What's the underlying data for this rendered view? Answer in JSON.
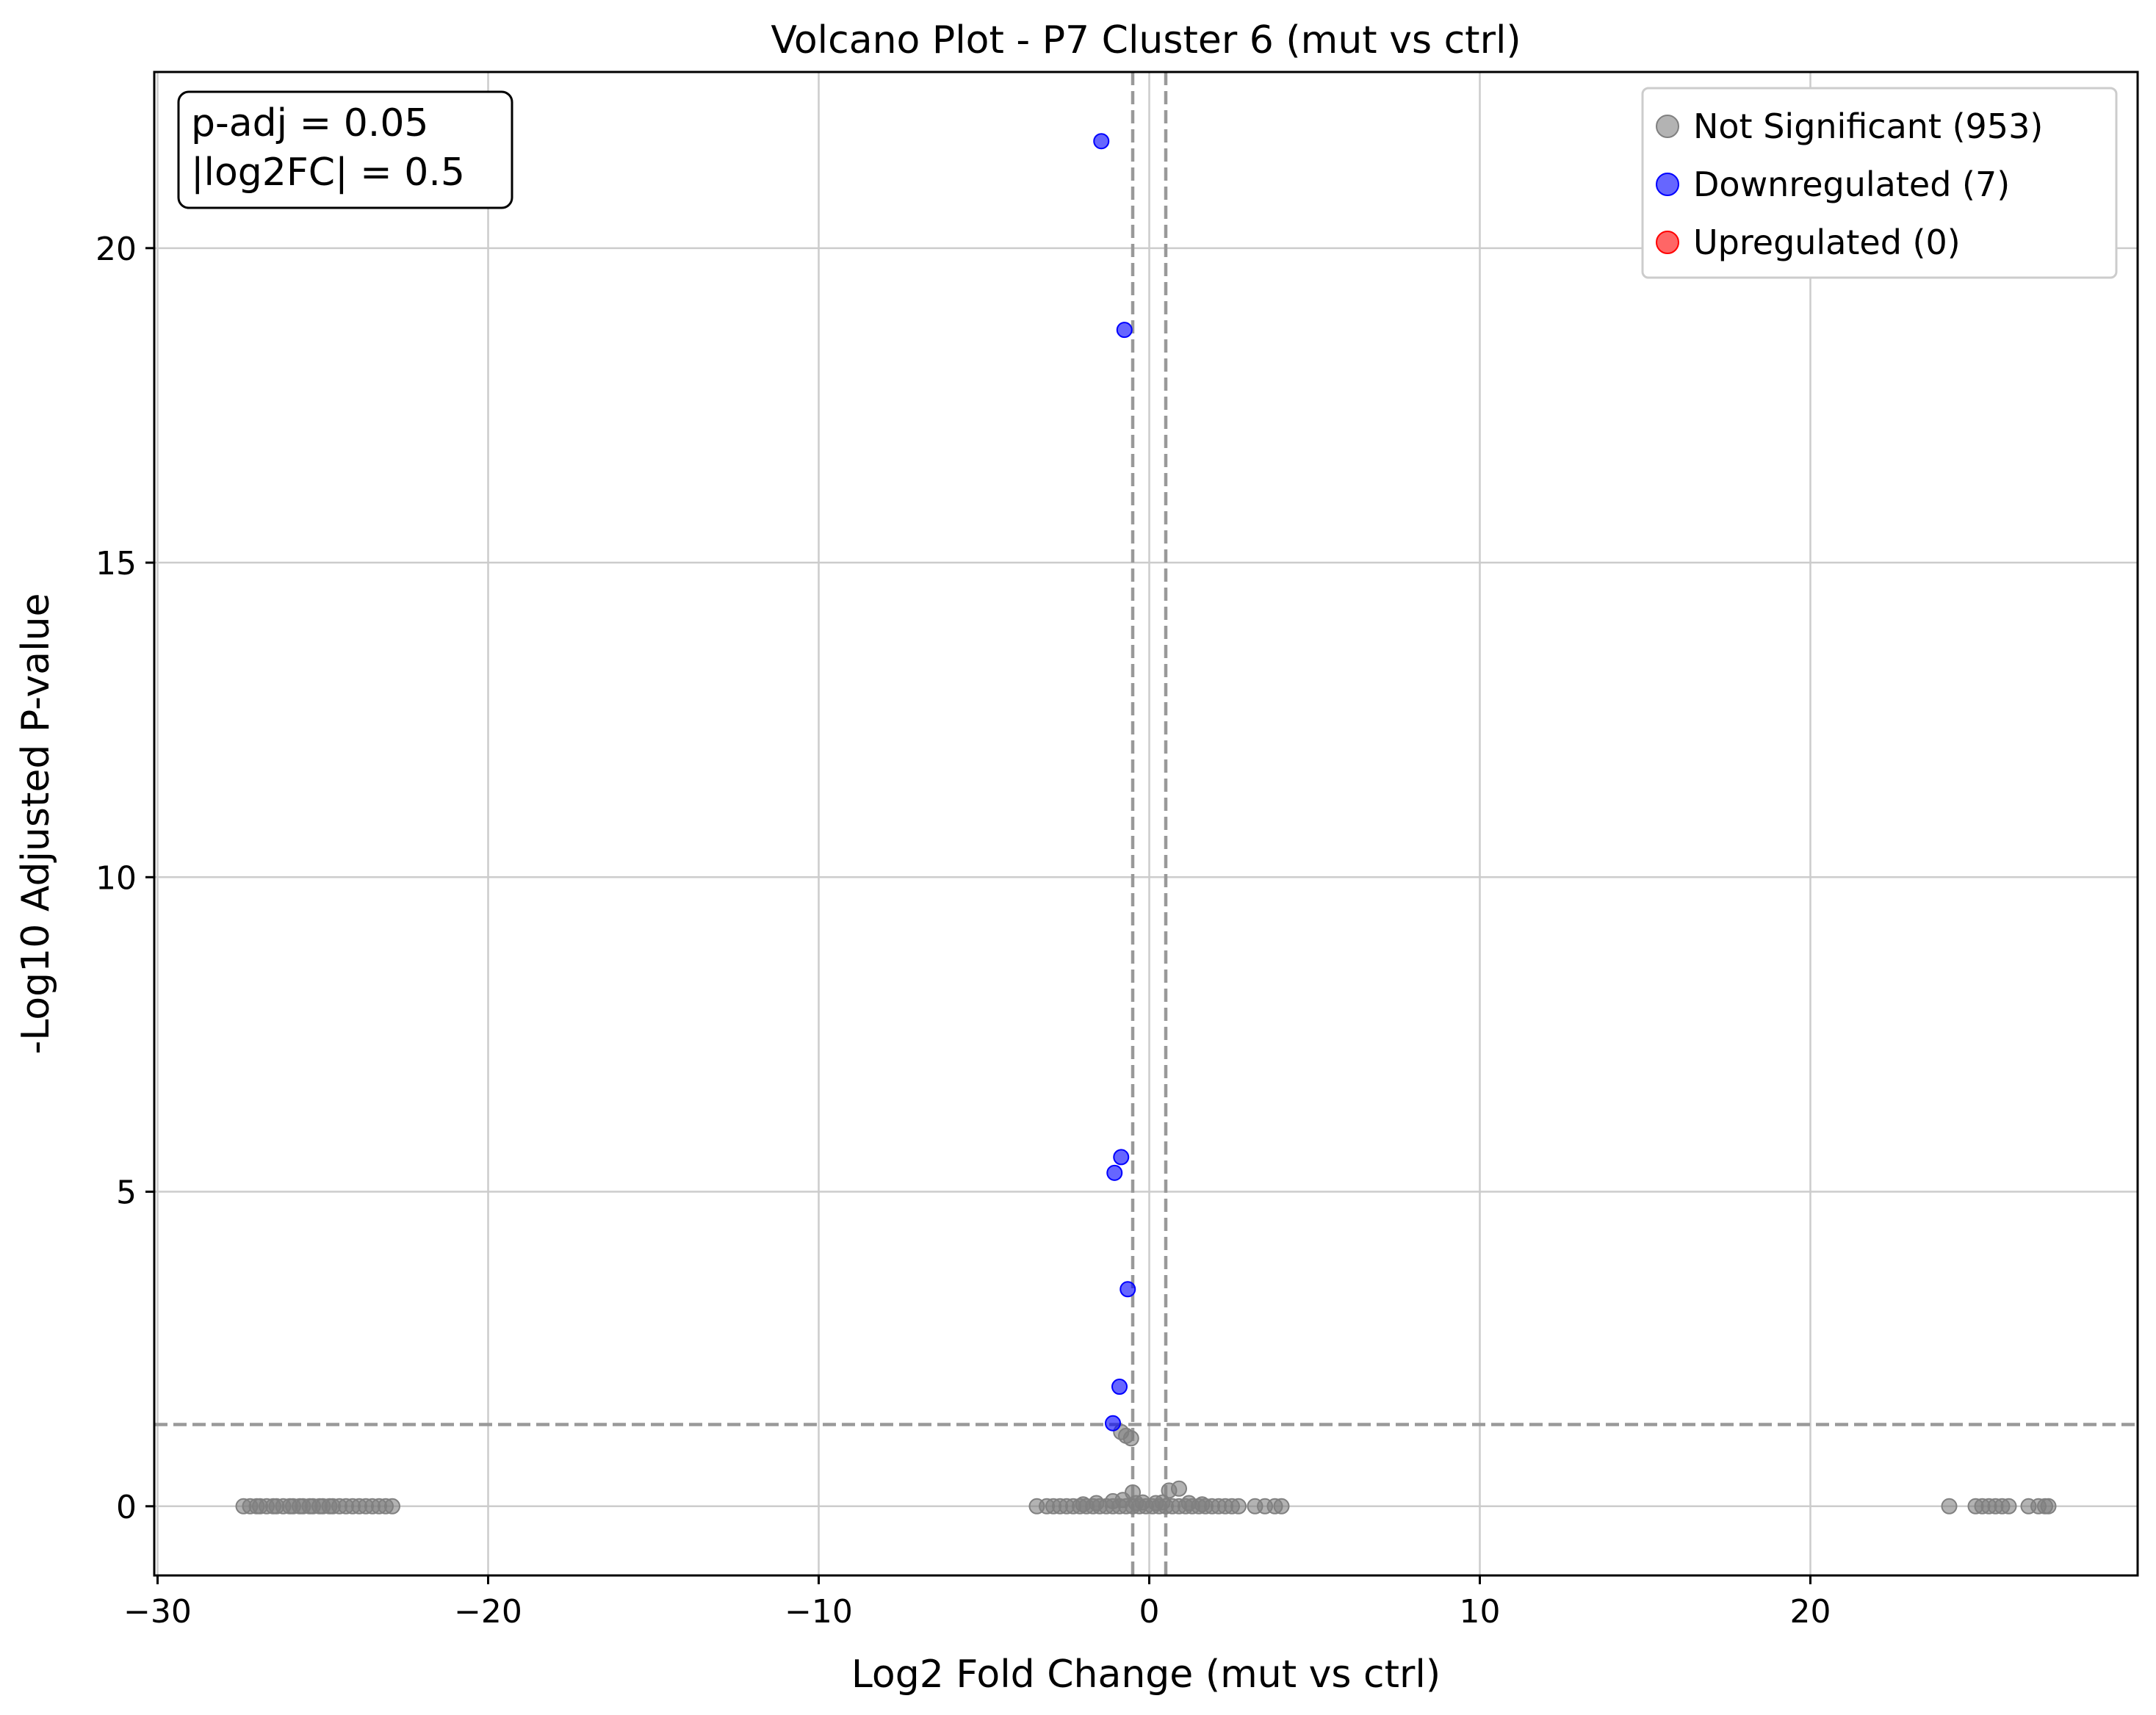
{
  "chart_data": {
    "type": "scatter",
    "title": "Volcano Plot - P7 Cluster 6 (mut vs ctrl)",
    "xlabel": "Log2 Fold Change (mut vs ctrl)",
    "ylabel": "-Log10 Adjusted P-value",
    "xlim": [
      -30.1,
      29.9
    ],
    "ylim": [
      -1.1,
      22.8
    ],
    "xticks": [
      -30,
      -20,
      -10,
      0,
      10,
      20
    ],
    "xtick_labels": [
      "−30",
      "−20",
      "−10",
      "0",
      "10",
      "20"
    ],
    "yticks": [
      0,
      5,
      10,
      15,
      20
    ],
    "ytick_labels": [
      "0",
      "5",
      "10",
      "15",
      "20"
    ],
    "grid": true,
    "legend_placement": "top-right",
    "threshold_lines": {
      "fc_left": -0.5,
      "fc_right": 0.5,
      "padj_line": 1.3
    },
    "annotation": [
      "p-adj = 0.05",
      "|log2FC| = 0.5"
    ],
    "colors": {
      "not_significant": "#808080",
      "downregulated": "#0000ff",
      "upregulated": "#ff0000",
      "threshold_line": "#999999",
      "grid": "#cccccc"
    },
    "series": [
      {
        "name": "Not Significant (953)",
        "color": "#808080",
        "points": [
          [
            -27.4,
            0
          ],
          [
            -27.2,
            0
          ],
          [
            -27.0,
            0
          ],
          [
            -26.9,
            0
          ],
          [
            -26.7,
            0
          ],
          [
            -26.5,
            0
          ],
          [
            -26.4,
            0
          ],
          [
            -26.2,
            0
          ],
          [
            -26.0,
            0
          ],
          [
            -25.9,
            0
          ],
          [
            -25.7,
            0
          ],
          [
            -25.6,
            0
          ],
          [
            -25.4,
            0
          ],
          [
            -25.3,
            0
          ],
          [
            -25.1,
            0
          ],
          [
            -25.0,
            0
          ],
          [
            -24.8,
            0
          ],
          [
            -24.7,
            0
          ],
          [
            -24.5,
            0
          ],
          [
            -24.3,
            0
          ],
          [
            -24.1,
            0
          ],
          [
            -23.9,
            0
          ],
          [
            -23.7,
            0
          ],
          [
            -23.5,
            0
          ],
          [
            -23.3,
            0
          ],
          [
            -23.1,
            0
          ],
          [
            -22.9,
            0
          ],
          [
            -3.4,
            0
          ],
          [
            -3.1,
            0
          ],
          [
            -2.9,
            0
          ],
          [
            -2.7,
            0
          ],
          [
            -2.5,
            0
          ],
          [
            -2.3,
            0
          ],
          [
            -2.1,
            0
          ],
          [
            -1.9,
            0
          ],
          [
            -1.7,
            0
          ],
          [
            -1.5,
            0
          ],
          [
            -1.3,
            0
          ],
          [
            -1.1,
            0
          ],
          [
            -0.9,
            0
          ],
          [
            -0.7,
            0
          ],
          [
            -0.5,
            0
          ],
          [
            -0.3,
            0
          ],
          [
            -0.1,
            0
          ],
          [
            0.1,
            0
          ],
          [
            0.3,
            0
          ],
          [
            0.5,
            0
          ],
          [
            0.7,
            0
          ],
          [
            0.9,
            0
          ],
          [
            1.1,
            0
          ],
          [
            1.3,
            0
          ],
          [
            1.5,
            0
          ],
          [
            1.7,
            0
          ],
          [
            1.9,
            0
          ],
          [
            2.1,
            0
          ],
          [
            2.3,
            0
          ],
          [
            2.5,
            0
          ],
          [
            2.7,
            0
          ],
          [
            3.2,
            0
          ],
          [
            3.5,
            0
          ],
          [
            3.8,
            0
          ],
          [
            4.0,
            0
          ],
          [
            -2.0,
            0.03
          ],
          [
            -1.6,
            0.05
          ],
          [
            -1.1,
            0.08
          ],
          [
            -0.8,
            0.1
          ],
          [
            -0.5,
            0.22
          ],
          [
            -0.4,
            0.05
          ],
          [
            -0.2,
            0.06
          ],
          [
            0.2,
            0.05
          ],
          [
            0.4,
            0.06
          ],
          [
            0.6,
            0.25
          ],
          [
            0.9,
            0.28
          ],
          [
            1.2,
            0.05
          ],
          [
            1.6,
            0.03
          ],
          [
            -0.85,
            1.18
          ],
          [
            -0.7,
            1.12
          ],
          [
            -0.55,
            1.08
          ],
          [
            24.2,
            0
          ],
          [
            25.0,
            0
          ],
          [
            25.2,
            0
          ],
          [
            25.4,
            0
          ],
          [
            25.6,
            0
          ],
          [
            25.8,
            0
          ],
          [
            26.0,
            0
          ],
          [
            26.6,
            0
          ],
          [
            26.9,
            0
          ],
          [
            27.1,
            0
          ],
          [
            27.2,
            0
          ]
        ]
      },
      {
        "name": "Downregulated (7)",
        "color": "#0000ff",
        "points": [
          [
            -1.45,
            21.7
          ],
          [
            -0.75,
            18.7
          ],
          [
            -0.85,
            5.55
          ],
          [
            -1.05,
            5.3
          ],
          [
            -0.65,
            3.45
          ],
          [
            -0.9,
            1.9
          ],
          [
            -1.1,
            1.32
          ]
        ]
      },
      {
        "name": "Upregulated (0)",
        "color": "#ff0000",
        "points": []
      }
    ]
  }
}
